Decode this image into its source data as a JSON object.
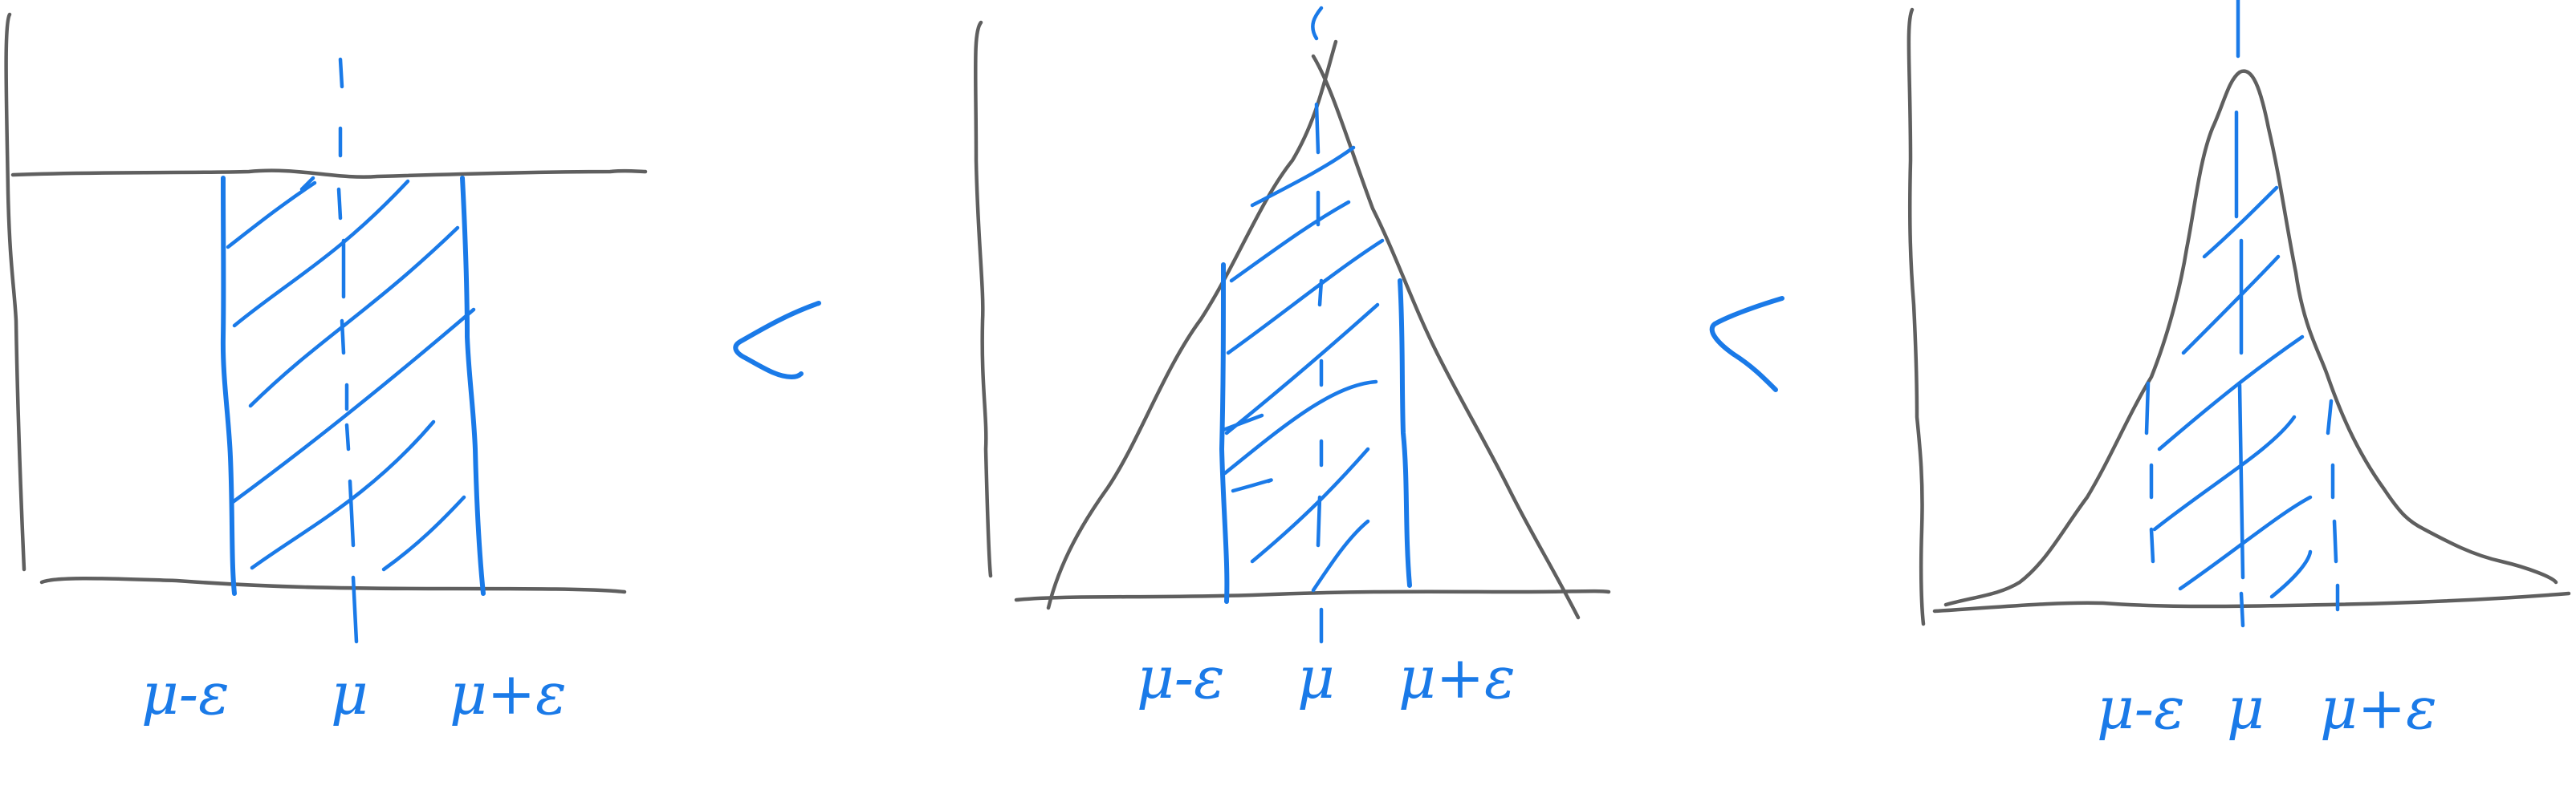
{
  "colors": {
    "graphite": "#5f5f5f",
    "pen_blue": "#1a7ae8"
  },
  "relations": {
    "first": "<",
    "second": "<"
  },
  "panels": [
    {
      "shape": "uniform",
      "labels": {
        "left": "μ-ε",
        "center": "μ",
        "right": "μ+ε"
      }
    },
    {
      "shape": "triangular",
      "labels": {
        "left": "μ-ε",
        "center": "μ",
        "right": "μ+ε"
      }
    },
    {
      "shape": "peaked",
      "labels": {
        "left": "μ-ε",
        "center": "μ",
        "right": "μ+ε"
      }
    }
  ]
}
